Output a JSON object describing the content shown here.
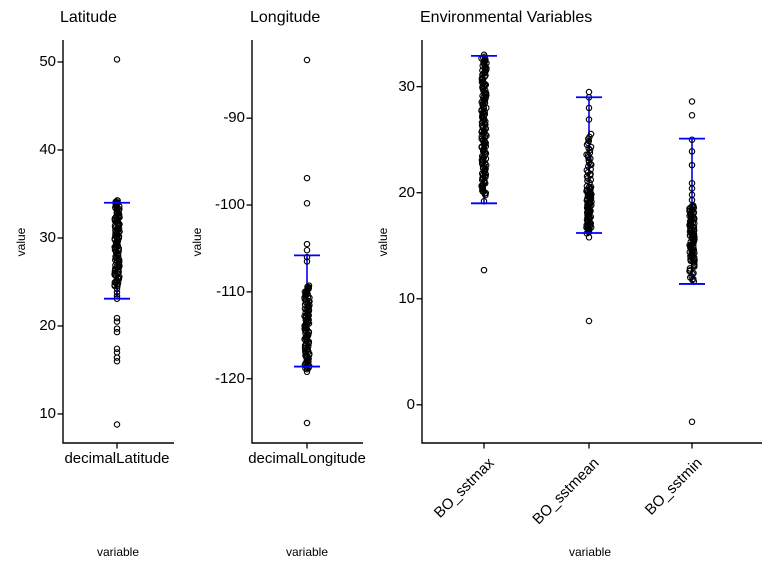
{
  "figure": {
    "background": "#ffffff",
    "point_color": "#000000",
    "axis_color": "#000000",
    "errorbar_color": "#0000ff"
  },
  "chart_data": [
    {
      "type": "scatter",
      "title": "Latitude",
      "xlabel": "variable",
      "ylabel": "value",
      "categories": [
        "decimalLatitude"
      ],
      "yticks": [
        10,
        20,
        30,
        40,
        50
      ],
      "ylim": [
        6.7,
        52.5
      ],
      "grid": false,
      "series": [
        {
          "name": "decimalLatitude",
          "points": [
            50.3,
            24.2,
            23.8,
            23.4,
            23.1,
            20.9,
            20.5,
            19.7,
            19.3,
            17.4,
            17.0,
            16.4,
            16.0,
            8.8
          ],
          "clusters": [
            {
              "min": 24.5,
              "max": 34.3,
              "n": 120
            }
          ],
          "errorbar": {
            "mean": 28.5,
            "lower": 23.1,
            "upper": 34.0
          }
        }
      ]
    },
    {
      "type": "scatter",
      "title": "Longitude",
      "xlabel": "variable",
      "ylabel": "value",
      "categories": [
        "decimalLongitude"
      ],
      "yticks": [
        -120,
        -110,
        -100,
        -90
      ],
      "ylim": [
        -127.4,
        -81.0
      ],
      "grid": false,
      "series": [
        {
          "name": "decimalLongitude",
          "points": [
            -83.3,
            -96.9,
            -99.8,
            -104.5,
            -105.2,
            -106.0,
            -106.5,
            -118.9,
            -119.2,
            -125.1
          ],
          "clusters": [
            {
              "min": -118.8,
              "max": -109.3,
              "n": 110
            }
          ],
          "errorbar": {
            "mean": -112.2,
            "lower": -118.6,
            "upper": -105.8
          }
        }
      ]
    },
    {
      "type": "scatter",
      "title": "Environmental Variables",
      "xlabel": "variable",
      "ylabel": "value",
      "categories": [
        "BO_sstmax",
        "BO_sstmean",
        "BO_sstmin"
      ],
      "yticks": [
        0,
        10,
        20,
        30
      ],
      "ylim": [
        -3.6,
        34.4
      ],
      "grid": false,
      "series": [
        {
          "name": "BO_sstmax",
          "points": [
            33.0,
            19.2,
            12.7
          ],
          "clusters": [
            {
              "min": 19.8,
              "max": 32.8,
              "n": 150
            }
          ],
          "errorbar": {
            "mean": 25.9,
            "lower": 19.0,
            "upper": 32.9
          }
        },
        {
          "name": "BO_sstmean",
          "points": [
            29.5,
            29.0,
            28.0,
            26.9,
            15.8,
            7.9
          ],
          "clusters": [
            {
              "min": 24.0,
              "max": 25.5,
              "n": 9
            },
            {
              "min": 20.9,
              "max": 23.8,
              "n": 20
            },
            {
              "min": 16.2,
              "max": 20.6,
              "n": 80
            }
          ],
          "errorbar": {
            "mean": 22.6,
            "lower": 16.2,
            "upper": 29.0
          }
        },
        {
          "name": "BO_sstmin",
          "points": [
            28.6,
            27.3,
            25.0,
            23.9,
            22.6,
            20.9,
            20.4,
            19.8,
            19.3,
            -1.6
          ],
          "clusters": [
            {
              "min": 13.5,
              "max": 18.8,
              "n": 90
            },
            {
              "min": 11.6,
              "max": 13.4,
              "n": 14
            }
          ],
          "errorbar": {
            "mean": 18.3,
            "lower": 11.4,
            "upper": 25.1
          }
        }
      ]
    }
  ]
}
